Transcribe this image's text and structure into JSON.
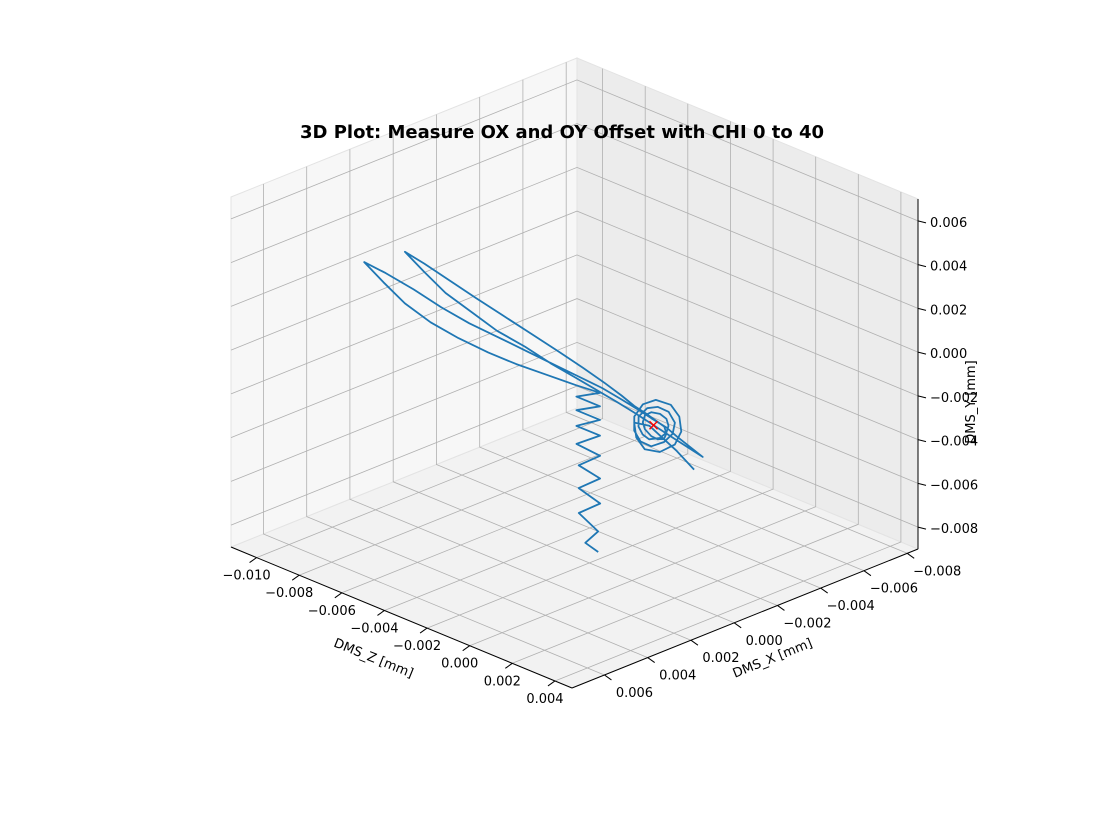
{
  "chart_data": {
    "type": "line3d",
    "title": "3D Plot: Measure OX and OY Offset with CHI 0 to 40",
    "xlabel": "DMS_Z [mm]",
    "ylabel": "DMS_X [mm]",
    "zlabel": "DMS_Y [mm]",
    "x_ticks": [
      "−0.010",
      "−0.008",
      "−0.006",
      "−0.004",
      "−0.002",
      "0.000",
      "0.002",
      "0.004"
    ],
    "x_tick_values": [
      -0.01,
      -0.008,
      -0.006,
      -0.004,
      -0.002,
      0.0,
      0.002,
      0.004
    ],
    "y_ticks": [
      "−0.008",
      "−0.006",
      "−0.004",
      "−0.002",
      "0.000",
      "0.002",
      "0.004",
      "0.006"
    ],
    "y_tick_values": [
      -0.008,
      -0.006,
      -0.004,
      -0.002,
      0.0,
      0.002,
      0.004,
      0.006
    ],
    "z_ticks": [
      "−0.008",
      "−0.006",
      "−0.004",
      "−0.002",
      "0.000",
      "0.002",
      "0.004",
      "0.006"
    ],
    "z_tick_values": [
      -0.008,
      -0.006,
      -0.004,
      -0.002,
      0.0,
      0.002,
      0.004,
      0.006
    ],
    "xlim": [
      -0.0112,
      0.0048
    ],
    "ylim": [
      -0.0085,
      0.0075
    ],
    "zlim": [
      -0.009,
      0.007
    ],
    "grid": true,
    "series": [
      {
        "color": "#1f77b4",
        "points": [
          [
            -0.0028,
            -0.0012,
            -0.0093
          ],
          [
            -0.003,
            -0.0008,
            -0.0088
          ],
          [
            -0.0026,
            -0.001,
            -0.0082
          ],
          [
            -0.0031,
            -0.0006,
            -0.0074
          ],
          [
            -0.0024,
            -0.0009,
            -0.0068
          ],
          [
            -0.0029,
            -0.0004,
            -0.0061
          ],
          [
            -0.0022,
            -0.0007,
            -0.0055
          ],
          [
            -0.0027,
            -0.0002,
            -0.0049
          ],
          [
            -0.002,
            -0.0005,
            -0.0043
          ],
          [
            -0.0026,
            0.0,
            -0.0038
          ],
          [
            -0.0019,
            -0.0004,
            -0.0033
          ],
          [
            -0.0025,
            0.0001,
            -0.0029
          ],
          [
            -0.0018,
            -0.0003,
            -0.0025
          ],
          [
            -0.0024,
            0.0002,
            -0.0021
          ],
          [
            -0.0017,
            -0.0002,
            -0.0018
          ],
          [
            -0.0023,
            0.0003,
            -0.0014
          ],
          [
            -0.0016,
            -0.0001,
            -0.0011
          ],
          [
            -0.0022,
            0.0004,
            -0.0008
          ],
          [
            -0.003,
            0.001,
            -0.0004
          ],
          [
            -0.0038,
            0.0016,
            0.0
          ],
          [
            -0.0046,
            0.0021,
            0.0004
          ],
          [
            -0.0055,
            0.0026,
            0.0009
          ],
          [
            -0.0063,
            0.0031,
            0.0015
          ],
          [
            -0.0071,
            0.0035,
            0.0022
          ],
          [
            -0.0078,
            0.0038,
            0.003
          ],
          [
            -0.0084,
            0.0041,
            0.0038
          ],
          [
            -0.0079,
            0.0036,
            0.0033
          ],
          [
            -0.0072,
            0.003,
            0.0026
          ],
          [
            -0.0064,
            0.0025,
            0.0019
          ],
          [
            -0.0056,
            0.002,
            0.0013
          ],
          [
            -0.0047,
            0.0015,
            0.0008
          ],
          [
            -0.0039,
            0.001,
            0.0003
          ],
          [
            -0.0031,
            0.0005,
            -0.0002
          ],
          [
            -0.0024,
            0.0001,
            -0.0006
          ],
          [
            -0.0017,
            -0.0003,
            -0.001
          ],
          [
            -0.0011,
            -0.0006,
            -0.0014
          ],
          [
            -0.0006,
            -0.0009,
            -0.0018
          ],
          [
            -0.0002,
            -0.0011,
            -0.0021
          ],
          [
            0.0003,
            -0.0013,
            -0.0024
          ],
          [
            0.0007,
            -0.0014,
            -0.0027
          ],
          [
            0.0012,
            -0.0015,
            -0.003
          ],
          [
            0.0017,
            -0.0016,
            -0.0033
          ],
          [
            0.0013,
            -0.0013,
            -0.0029
          ],
          [
            0.0009,
            -0.001,
            -0.0025
          ],
          [
            0.0005,
            -0.0008,
            -0.0022
          ],
          [
            0.0001,
            -0.0006,
            -0.0019
          ],
          [
            -0.0003,
            -0.0004,
            -0.0016
          ],
          [
            -0.0008,
            -0.0001,
            -0.0012
          ],
          [
            -0.0014,
            0.0002,
            -0.0008
          ],
          [
            -0.0021,
            0.0006,
            -0.0003
          ],
          [
            -0.0028,
            0.001,
            0.0002
          ],
          [
            -0.0036,
            0.0014,
            0.0008
          ],
          [
            -0.0044,
            0.0019,
            0.0014
          ],
          [
            -0.0052,
            0.0023,
            0.0021
          ],
          [
            -0.006,
            0.0027,
            0.0028
          ],
          [
            -0.0067,
            0.003,
            0.0036
          ],
          [
            -0.0073,
            0.0033,
            0.0044
          ],
          [
            -0.0068,
            0.0029,
            0.0039
          ],
          [
            -0.0061,
            0.0024,
            0.0032
          ],
          [
            -0.0054,
            0.0019,
            0.0025
          ],
          [
            -0.0046,
            0.0014,
            0.0018
          ],
          [
            -0.0038,
            0.0009,
            0.0011
          ],
          [
            -0.003,
            0.0004,
            0.0004
          ],
          [
            -0.0023,
            0.0,
            -0.0002
          ],
          [
            -0.0017,
            -0.0004,
            -0.0008
          ],
          [
            -0.0012,
            -0.0007,
            -0.0013
          ],
          [
            -0.0008,
            -0.0009,
            -0.0017
          ],
          [
            -0.0004,
            -0.0011,
            -0.002
          ],
          [
            -0.0001,
            -0.0012,
            -0.0022
          ],
          [
            0.0002,
            -0.0013,
            -0.0024
          ],
          [
            0.0004,
            -0.0012,
            -0.0026
          ],
          [
            0.0005,
            -0.001,
            -0.0027
          ],
          [
            0.0004,
            -0.0008,
            -0.0027
          ],
          [
            0.0002,
            -0.0007,
            -0.0026
          ],
          [
            -0.0001,
            -0.0007,
            -0.0024
          ],
          [
            -0.0003,
            -0.0008,
            -0.0022
          ],
          [
            -0.0004,
            -0.001,
            -0.002
          ],
          [
            -0.0003,
            -0.0012,
            -0.0019
          ],
          [
            0.0,
            -0.0013,
            -0.0019
          ],
          [
            0.0003,
            -0.0013,
            -0.002
          ],
          [
            0.0005,
            -0.0012,
            -0.0022
          ],
          [
            0.0006,
            -0.001,
            -0.0024
          ],
          [
            0.0005,
            -0.0008,
            -0.0026
          ],
          [
            0.0002,
            -0.0006,
            -0.0027
          ],
          [
            -0.0001,
            -0.0006,
            -0.0026
          ],
          [
            -0.0004,
            -0.0007,
            -0.0024
          ],
          [
            -0.0006,
            -0.0009,
            -0.0021
          ],
          [
            -0.0005,
            -0.0012,
            -0.0018
          ],
          [
            -0.0002,
            -0.0014,
            -0.0017
          ],
          [
            0.0002,
            -0.0015,
            -0.0018
          ],
          [
            0.0006,
            -0.0014,
            -0.0021
          ],
          [
            0.0008,
            -0.0011,
            -0.0024
          ],
          [
            0.0007,
            -0.0008,
            -0.0027
          ],
          [
            0.0004,
            -0.0005,
            -0.0029
          ],
          [
            0.0,
            -0.0004,
            -0.0028
          ],
          [
            -0.0004,
            -0.0005,
            -0.0025
          ],
          [
            -0.0007,
            -0.0008,
            -0.0021
          ],
          [
            -0.0007,
            -0.0012,
            -0.0017
          ],
          [
            -0.0004,
            -0.0015,
            -0.0015
          ],
          [
            0.0001,
            -0.0017,
            -0.0016
          ],
          [
            0.0006,
            -0.0016,
            -0.0019
          ],
          [
            0.001,
            -0.0013,
            -0.0023
          ],
          [
            0.0011,
            -0.0009,
            -0.0027
          ],
          [
            0.0008,
            -0.0005,
            -0.003
          ],
          [
            0.0003,
            -0.0003,
            -0.003
          ],
          [
            -0.0002,
            -0.0004,
            -0.0027
          ],
          [
            -0.0006,
            -0.0007,
            -0.0023
          ],
          [
            -0.0002,
            -0.001,
            -0.0024
          ],
          [
            0.0009,
            -0.0012,
            -0.0032
          ],
          [
            0.0016,
            -0.0013,
            -0.0038
          ]
        ]
      }
    ],
    "marker": {
      "x": 0.0,
      "y": -0.001,
      "z": -0.0023,
      "color": "#ff0000",
      "symbol": "x"
    }
  }
}
